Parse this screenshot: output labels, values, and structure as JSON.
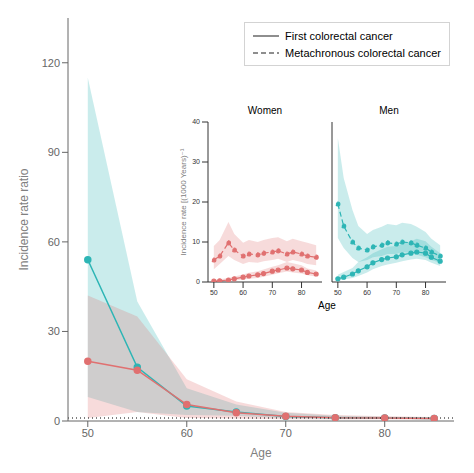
{
  "chart_data": [
    {
      "type": "line",
      "xlabel": "Age",
      "ylabel": "Incidence rate ratio",
      "x": [
        50,
        55,
        60,
        65,
        70,
        75,
        80,
        85
      ],
      "xlim": [
        48,
        87
      ],
      "xticks": [
        50,
        60,
        70,
        80
      ],
      "ylim": [
        0,
        135
      ],
      "yticks": [
        0,
        30,
        60,
        90,
        120
      ],
      "marker": "circle",
      "series": [
        {
          "color": "#2db5b5",
          "line_style": "solid",
          "values": [
            54,
            18,
            5,
            3,
            1.5,
            1.1,
            1.0,
            0.85
          ],
          "lo": [
            8,
            3,
            2.0,
            1.8,
            0.9,
            0.7,
            0.7,
            0.55
          ],
          "hi": [
            115,
            40,
            11,
            5.5,
            2.8,
            1.8,
            1.4,
            1.2
          ]
        },
        {
          "color": "#e07070",
          "line_style": "solid",
          "values": [
            20,
            17,
            5.5,
            2.8,
            1.6,
            1.1,
            1.0,
            0.85
          ],
          "lo": [
            1,
            3,
            1.0,
            0.8,
            0.6,
            0.5,
            0.55,
            0.45
          ],
          "hi": [
            42,
            35,
            14,
            6.5,
            3.0,
            2.0,
            1.6,
            1.3
          ]
        }
      ],
      "hline": {
        "y": 1.0,
        "color": "#000000",
        "line_style": "dotted"
      },
      "legend": "upper right",
      "legend_entries": [
        {
          "name": "First colorectal cancer",
          "color": "#696969",
          "line_style": "solid"
        },
        {
          "name": "Metachronous colorectal cancer",
          "color": "#696969",
          "line_style": "dashed"
        }
      ]
    },
    {
      "type": "line",
      "title": "Women",
      "xlabel": "Age",
      "ylabel": "Incidence rate [(1000 Years)⁻¹",
      "x": [
        50,
        52,
        55,
        57,
        60,
        62,
        65,
        67,
        70,
        72,
        75,
        77,
        80,
        82,
        85
      ],
      "xlim": [
        48,
        87
      ],
      "xticks": [
        50,
        60,
        70,
        80
      ],
      "ylim": [
        0,
        40
      ],
      "yticks": [
        0,
        10,
        20,
        30,
        40
      ],
      "marker": "circle",
      "series": [
        {
          "color": "#e07070",
          "line_style": "solid",
          "values": [
            0.2,
            0.3,
            0.5,
            0.8,
            1.2,
            1.5,
            1.8,
            2.1,
            2.7,
            3.0,
            3.5,
            3.3,
            3.0,
            2.4,
            2.0
          ],
          "lo": [
            0.05,
            0.1,
            0.2,
            0.4,
            0.6,
            0.8,
            1.0,
            1.3,
            1.8,
            2.2,
            2.6,
            2.4,
            2.1,
            1.7,
            1.4
          ],
          "hi": [
            0.5,
            0.7,
            1.0,
            1.4,
            1.9,
            2.3,
            2.7,
            3.1,
            3.8,
            4.2,
            5.0,
            4.7,
            4.2,
            3.4,
            2.9
          ]
        },
        {
          "color": "#e07070",
          "line_style": "dashed",
          "values": [
            5.5,
            6.5,
            9.8,
            8.0,
            6.5,
            7.0,
            6.8,
            7.2,
            7.5,
            7.8,
            7.0,
            7.5,
            7.0,
            6.5,
            6.2
          ],
          "lo": [
            3.2,
            4.5,
            6.5,
            5.5,
            4.5,
            5.0,
            4.8,
            5.2,
            5.5,
            5.8,
            5.0,
            5.5,
            5.0,
            4.5,
            4.2
          ],
          "hi": [
            9.0,
            10.5,
            15.0,
            12.0,
            9.8,
            10.5,
            10.0,
            10.5,
            11.0,
            11.2,
            10.2,
            10.8,
            10.2,
            9.8,
            9.2
          ]
        }
      ]
    },
    {
      "type": "line",
      "title": "Men",
      "x": [
        50,
        52,
        55,
        57,
        60,
        62,
        65,
        67,
        70,
        72,
        75,
        77,
        80,
        82,
        85
      ],
      "xlim": [
        48,
        87
      ],
      "xticks": [
        50,
        60,
        70,
        80
      ],
      "ylim": [
        0,
        40
      ],
      "tick_labels": "x",
      "marker": "circle",
      "series": [
        {
          "color": "#2db5b5",
          "line_style": "solid",
          "values": [
            0.8,
            1.2,
            2.0,
            2.8,
            3.8,
            4.8,
            5.6,
            6.0,
            6.3,
            6.8,
            7.2,
            7.5,
            7.2,
            6.2,
            5.2
          ],
          "lo": [
            0.3,
            0.6,
            1.0,
            1.5,
            2.4,
            3.2,
            4.0,
            4.4,
            4.8,
            5.2,
            5.6,
            5.8,
            5.5,
            4.8,
            4.0
          ],
          "hi": [
            1.8,
            2.5,
            3.5,
            5.0,
            6.2,
            7.2,
            8.2,
            8.8,
            9.0,
            9.5,
            10.2,
            10.8,
            10.2,
            8.8,
            7.2
          ]
        },
        {
          "color": "#2db5b5",
          "line_style": "dashed",
          "values": [
            19.5,
            14.0,
            10.0,
            8.5,
            8.0,
            8.8,
            9.2,
            9.8,
            9.5,
            10.0,
            9.8,
            9.2,
            8.5,
            7.5,
            6.5
          ],
          "lo": [
            11.0,
            8.5,
            6.0,
            5.0,
            5.5,
            6.2,
            6.5,
            7.0,
            7.0,
            7.5,
            7.2,
            6.8,
            6.2,
            5.5,
            4.8
          ],
          "hi": [
            36.0,
            26.0,
            18.0,
            14.0,
            12.0,
            13.0,
            13.8,
            14.5,
            14.2,
            14.8,
            14.5,
            13.8,
            12.5,
            10.8,
            9.2
          ]
        }
      ]
    }
  ]
}
